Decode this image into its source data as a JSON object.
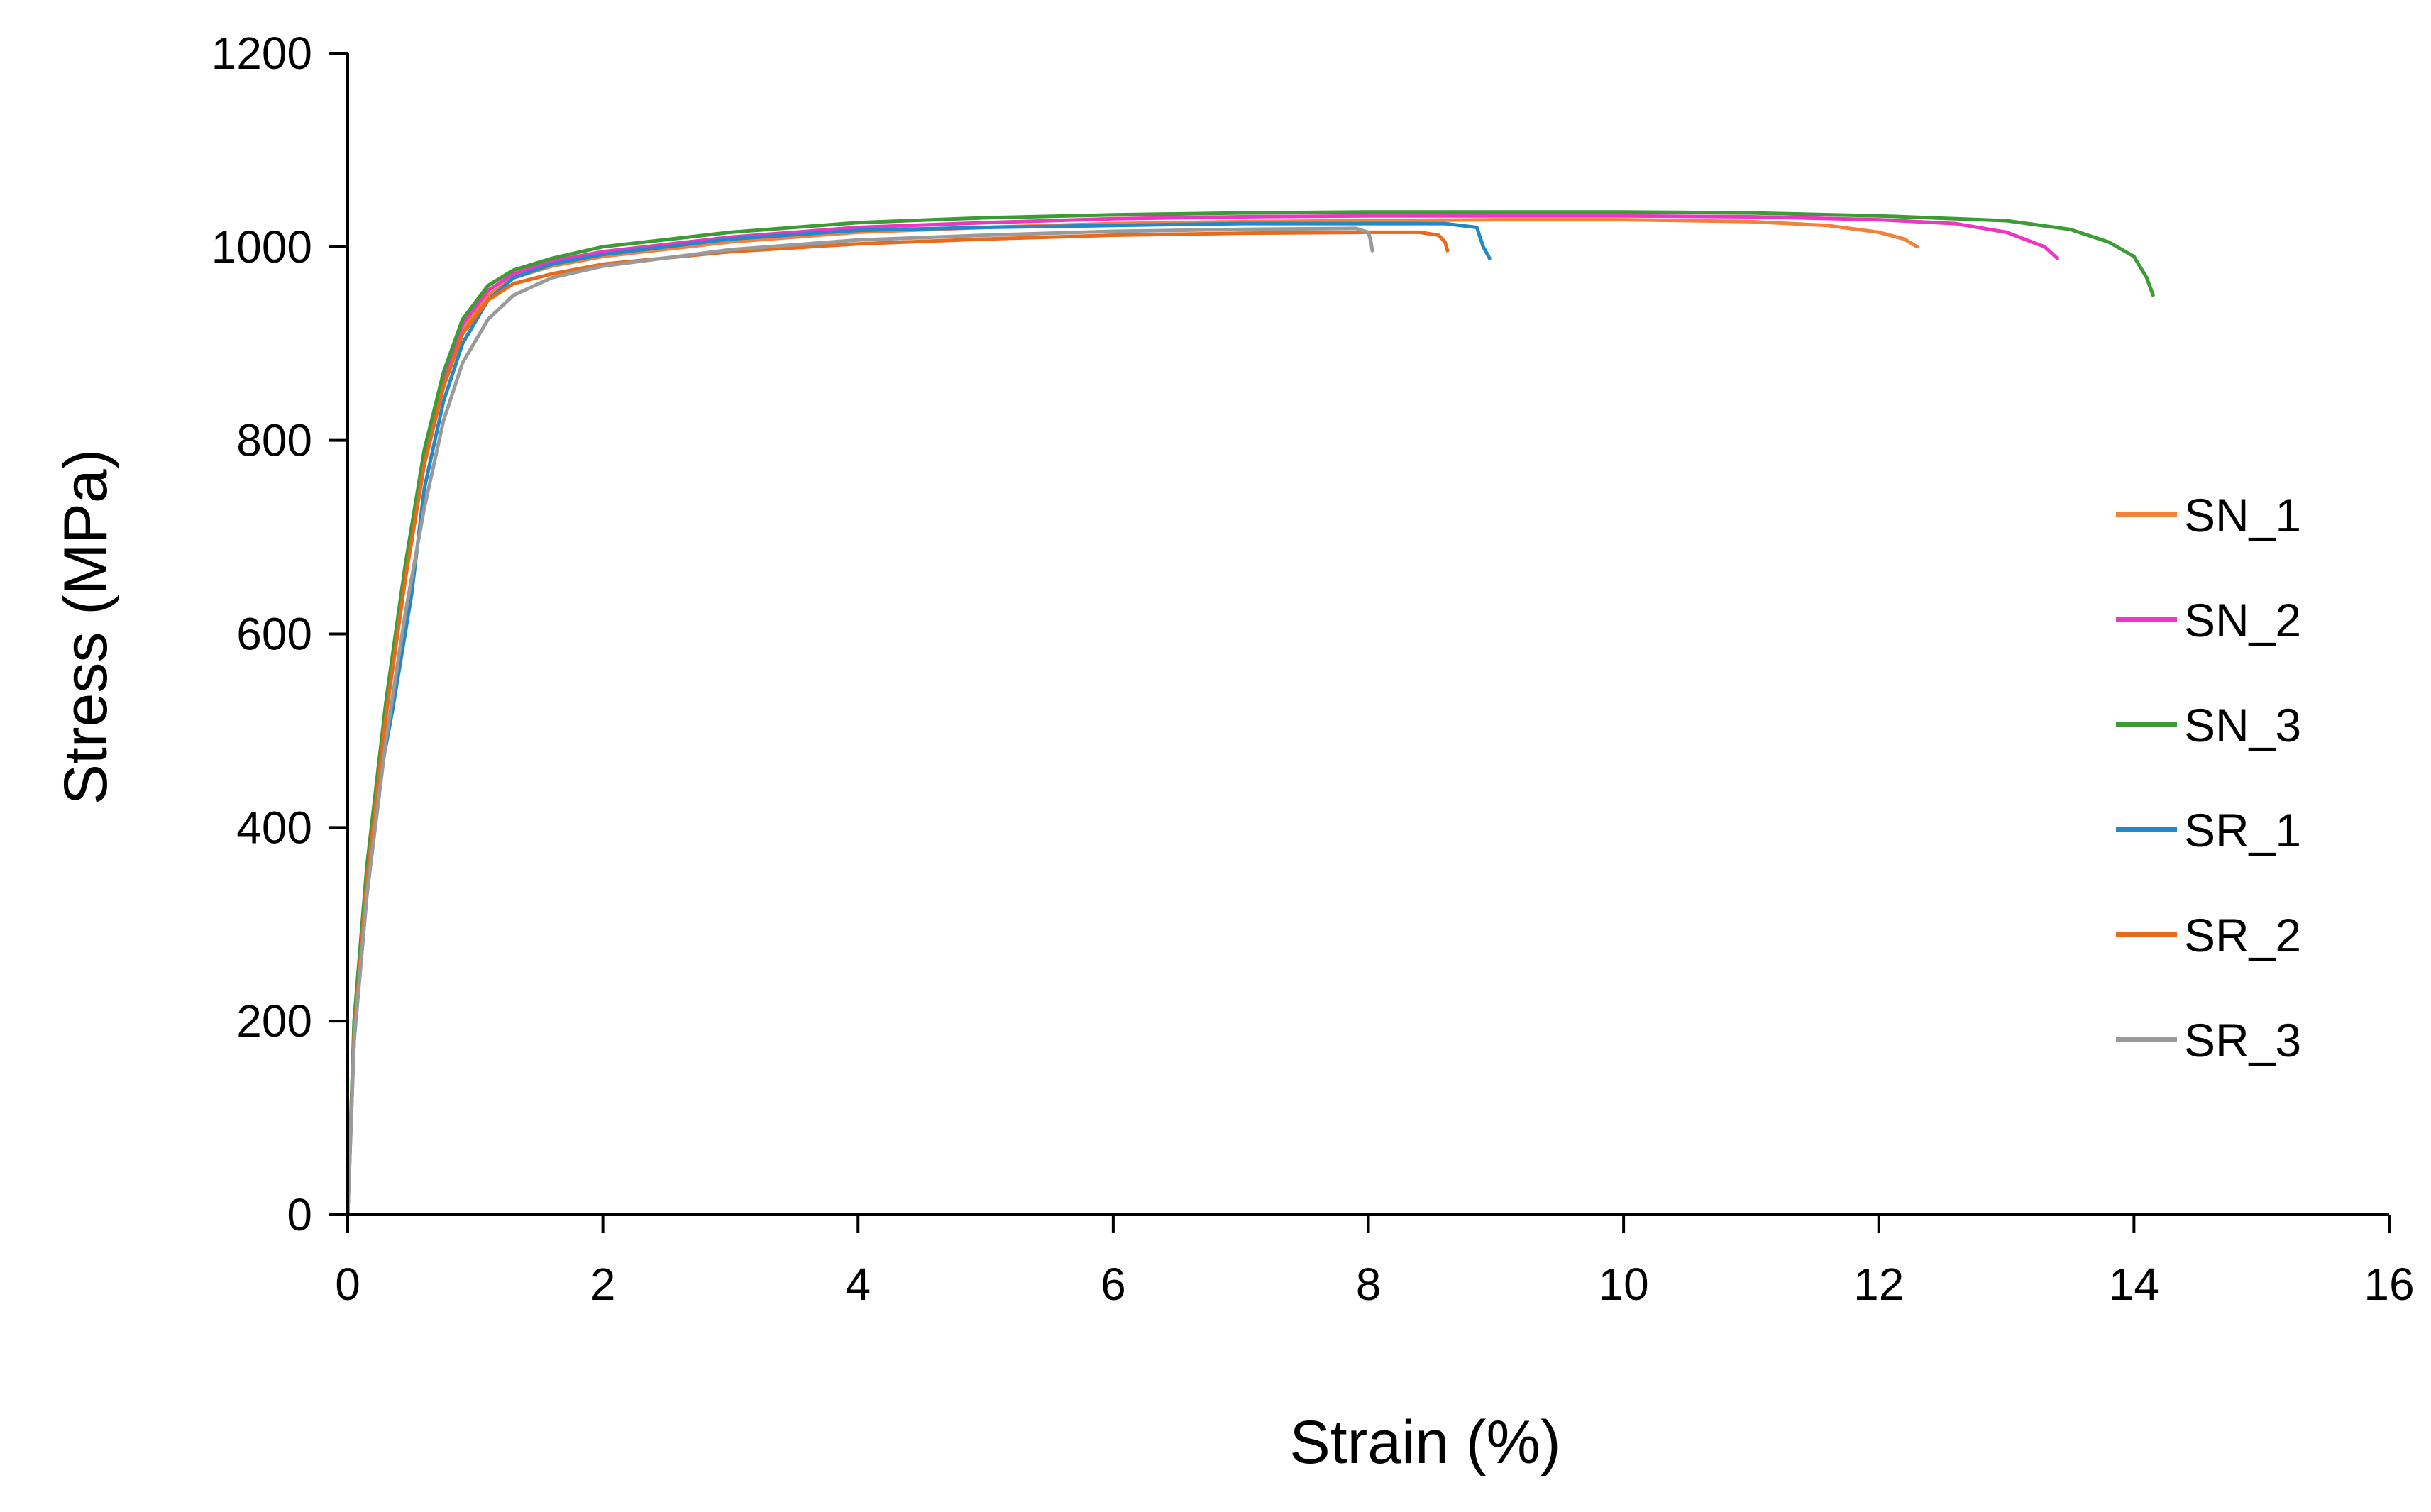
{
  "chart_data": {
    "type": "line",
    "title": "",
    "xlabel": "Strain (%)",
    "ylabel": "Stress (MPa)",
    "xlim": [
      0,
      16
    ],
    "ylim": [
      0,
      1200
    ],
    "xticks": [
      0,
      2,
      4,
      6,
      8,
      10,
      12,
      14,
      16
    ],
    "yticks": [
      0,
      200,
      400,
      600,
      800,
      1000,
      1200
    ],
    "grid": false,
    "legend_position": "right",
    "series": [
      {
        "name": "SN_1",
        "color": "#f4813a",
        "points": [
          [
            0,
            0
          ],
          [
            0.05,
            190
          ],
          [
            0.15,
            350
          ],
          [
            0.3,
            520
          ],
          [
            0.45,
            660
          ],
          [
            0.6,
            780
          ],
          [
            0.75,
            860
          ],
          [
            0.9,
            915
          ],
          [
            1.1,
            950
          ],
          [
            1.3,
            968
          ],
          [
            1.6,
            980
          ],
          [
            2,
            990
          ],
          [
            3,
            1005
          ],
          [
            4,
            1015
          ],
          [
            5,
            1020
          ],
          [
            6,
            1024
          ],
          [
            7,
            1026
          ],
          [
            8,
            1027
          ],
          [
            9,
            1028
          ],
          [
            10,
            1028
          ],
          [
            11,
            1026
          ],
          [
            11.6,
            1022
          ],
          [
            12,
            1015
          ],
          [
            12.2,
            1008
          ],
          [
            12.3,
            1000
          ]
        ]
      },
      {
        "name": "SN_2",
        "color": "#ee36c4",
        "points": [
          [
            0,
            0
          ],
          [
            0.05,
            195
          ],
          [
            0.15,
            355
          ],
          [
            0.3,
            525
          ],
          [
            0.45,
            665
          ],
          [
            0.6,
            785
          ],
          [
            0.75,
            865
          ],
          [
            0.9,
            920
          ],
          [
            1.1,
            955
          ],
          [
            1.3,
            972
          ],
          [
            1.6,
            985
          ],
          [
            2,
            995
          ],
          [
            3,
            1010
          ],
          [
            4,
            1020
          ],
          [
            5,
            1025
          ],
          [
            6,
            1029
          ],
          [
            7,
            1031
          ],
          [
            8,
            1032
          ],
          [
            9,
            1032
          ],
          [
            10,
            1032
          ],
          [
            11,
            1031
          ],
          [
            12,
            1028
          ],
          [
            12.6,
            1024
          ],
          [
            13,
            1015
          ],
          [
            13.3,
            1000
          ],
          [
            13.4,
            988
          ]
        ]
      },
      {
        "name": "SN_3",
        "color": "#3c9c34",
        "points": [
          [
            0,
            0
          ],
          [
            0.05,
            200
          ],
          [
            0.15,
            360
          ],
          [
            0.3,
            530
          ],
          [
            0.45,
            670
          ],
          [
            0.6,
            790
          ],
          [
            0.75,
            870
          ],
          [
            0.9,
            925
          ],
          [
            1.1,
            960
          ],
          [
            1.3,
            976
          ],
          [
            1.6,
            988
          ],
          [
            2,
            1000
          ],
          [
            3,
            1015
          ],
          [
            4,
            1025
          ],
          [
            5,
            1030
          ],
          [
            6,
            1033
          ],
          [
            7,
            1035
          ],
          [
            8,
            1036
          ],
          [
            9,
            1036
          ],
          [
            10,
            1036
          ],
          [
            11,
            1035
          ],
          [
            12,
            1032
          ],
          [
            13,
            1027
          ],
          [
            13.5,
            1018
          ],
          [
            13.8,
            1005
          ],
          [
            14,
            990
          ],
          [
            14.1,
            968
          ],
          [
            14.15,
            950
          ]
        ]
      },
      {
        "name": "SR_1",
        "color": "#2288c8",
        "points": [
          [
            0,
            0
          ],
          [
            0.05,
            180
          ],
          [
            0.15,
            330
          ],
          [
            0.25,
            450
          ],
          [
            0.35,
            520
          ],
          [
            0.45,
            600
          ],
          [
            0.5,
            640
          ],
          [
            0.6,
            750
          ],
          [
            0.75,
            840
          ],
          [
            0.9,
            900
          ],
          [
            1.1,
            945
          ],
          [
            1.3,
            968
          ],
          [
            1.6,
            982
          ],
          [
            2,
            992
          ],
          [
            3,
            1008
          ],
          [
            4,
            1017
          ],
          [
            5,
            1020
          ],
          [
            6,
            1022
          ],
          [
            7,
            1024
          ],
          [
            8,
            1024
          ],
          [
            8.6,
            1024
          ],
          [
            8.85,
            1020
          ],
          [
            8.9,
            1000
          ],
          [
            8.95,
            988
          ]
        ]
      },
      {
        "name": "SR_2",
        "color": "#e96a1a",
        "points": [
          [
            0,
            0
          ],
          [
            0.05,
            185
          ],
          [
            0.15,
            345
          ],
          [
            0.3,
            515
          ],
          [
            0.45,
            655
          ],
          [
            0.6,
            775
          ],
          [
            0.75,
            855
          ],
          [
            0.9,
            910
          ],
          [
            1.1,
            945
          ],
          [
            1.3,
            962
          ],
          [
            1.6,
            972
          ],
          [
            2,
            982
          ],
          [
            3,
            995
          ],
          [
            4,
            1003
          ],
          [
            5,
            1008
          ],
          [
            6,
            1012
          ],
          [
            7,
            1014
          ],
          [
            8,
            1015
          ],
          [
            8.4,
            1015
          ],
          [
            8.55,
            1012
          ],
          [
            8.6,
            1005
          ],
          [
            8.62,
            996
          ]
        ]
      },
      {
        "name": "SR_3",
        "color": "#9a9a9a",
        "points": [
          [
            0,
            0
          ],
          [
            0.05,
            180
          ],
          [
            0.15,
            330
          ],
          [
            0.3,
            490
          ],
          [
            0.45,
            620
          ],
          [
            0.6,
            730
          ],
          [
            0.75,
            820
          ],
          [
            0.9,
            880
          ],
          [
            1.1,
            925
          ],
          [
            1.3,
            950
          ],
          [
            1.6,
            968
          ],
          [
            2,
            980
          ],
          [
            3,
            997
          ],
          [
            4,
            1007
          ],
          [
            5,
            1012
          ],
          [
            6,
            1016
          ],
          [
            7,
            1018
          ],
          [
            7.9,
            1019
          ],
          [
            8.0,
            1015
          ],
          [
            8.02,
            1005
          ],
          [
            8.03,
            996
          ]
        ]
      }
    ]
  }
}
